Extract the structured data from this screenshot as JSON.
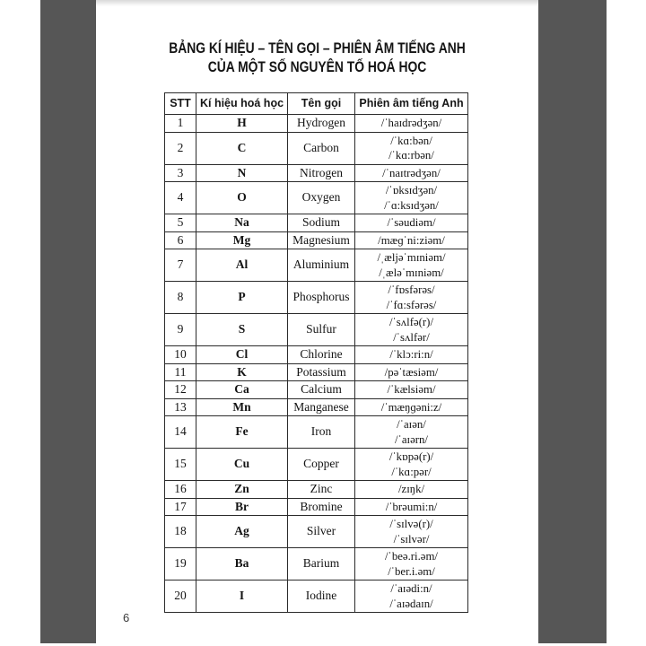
{
  "page": {
    "title_line1": "BẢNG KÍ HIỆU – TÊN GỌI – PHIÊN ÂM TIẾNG ANH",
    "title_line2": "CỦA MỘT SỐ NGUYÊN TỐ HOÁ HỌC",
    "page_number": "6"
  },
  "table": {
    "headers": [
      "STT",
      "Kí hiệu hoá học",
      "Tên gọi",
      "Phiên âm tiếng Anh"
    ],
    "rows": [
      {
        "stt": "1",
        "symbol": "H",
        "name": "Hydrogen",
        "ipa": [
          "/ˈhaɪdrədʒən/"
        ]
      },
      {
        "stt": "2",
        "symbol": "C",
        "name": "Carbon",
        "ipa": [
          "/ˈkɑ:bən/",
          "/ˈkɑ:rbən/"
        ]
      },
      {
        "stt": "3",
        "symbol": "N",
        "name": "Nitrogen",
        "ipa": [
          "/ˈnaɪtrədʒən/"
        ]
      },
      {
        "stt": "4",
        "symbol": "O",
        "name": "Oxygen",
        "ipa": [
          "/ˈɒksɪdʒən/",
          "/ˈɑ:ksɪdʒən/"
        ]
      },
      {
        "stt": "5",
        "symbol": "Na",
        "name": "Sodium",
        "ipa": [
          "/ˈsəudiəm/"
        ]
      },
      {
        "stt": "6",
        "symbol": "Mg",
        "name": "Magnesium",
        "ipa": [
          "/mæɡˈni:ziəm/"
        ]
      },
      {
        "stt": "7",
        "symbol": "Al",
        "name": "Aluminium",
        "ipa": [
          "/ˌæljəˈmɪniəm/",
          "/ˌæləˈmɪniəm/"
        ]
      },
      {
        "stt": "8",
        "symbol": "P",
        "name": "Phosphorus",
        "ipa": [
          "/ˈfɒsfərəs/",
          "/ˈfɑ:sfərəs/"
        ]
      },
      {
        "stt": "9",
        "symbol": "S",
        "name": "Sulfur",
        "ipa": [
          "/ˈsʌlfə(r)/",
          "/ˈsʌlfər/"
        ]
      },
      {
        "stt": "10",
        "symbol": "Cl",
        "name": "Chlorine",
        "ipa": [
          "/ˈklɔ:ri:n/"
        ]
      },
      {
        "stt": "11",
        "symbol": "K",
        "name": "Potassium",
        "ipa": [
          "/pəˈtæsiəm/"
        ]
      },
      {
        "stt": "12",
        "symbol": "Ca",
        "name": "Calcium",
        "ipa": [
          "/ˈkælsiəm/"
        ]
      },
      {
        "stt": "13",
        "symbol": "Mn",
        "name": "Manganese",
        "ipa": [
          "/ˈmæŋɡəni:z/"
        ]
      },
      {
        "stt": "14",
        "symbol": "Fe",
        "name": "Iron",
        "ipa": [
          "/ˈaɪən/",
          "/ˈaɪərn/"
        ]
      },
      {
        "stt": "15",
        "symbol": "Cu",
        "name": "Copper",
        "ipa": [
          "/ˈkɒpə(r)/",
          "/ˈkɑ:pər/"
        ]
      },
      {
        "stt": "16",
        "symbol": "Zn",
        "name": "Zinc",
        "ipa": [
          "/zɪŋk/"
        ]
      },
      {
        "stt": "17",
        "symbol": "Br",
        "name": "Bromine",
        "ipa": [
          "/ˈbrəumi:n/"
        ]
      },
      {
        "stt": "18",
        "symbol": "Ag",
        "name": "Silver",
        "ipa": [
          "/ˈsɪlvə(r)/",
          "/ˈsɪlvər/"
        ]
      },
      {
        "stt": "19",
        "symbol": "Ba",
        "name": "Barium",
        "ipa": [
          "/ˈbeə.ri.əm/",
          "/ˈber.i.əm/"
        ]
      },
      {
        "stt": "20",
        "symbol": "I",
        "name": "Iodine",
        "ipa": [
          "/ˈaɪədi:n/",
          "/ˈaɪədaɪn/"
        ]
      }
    ]
  },
  "colors": {
    "backdrop": "#565656",
    "page_bg": "#ffffff",
    "border": "#2b2b2b",
    "text": "#141414"
  }
}
